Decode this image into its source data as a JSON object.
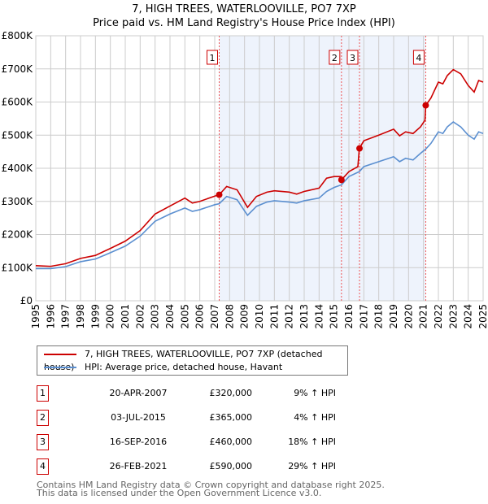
{
  "chart_data": {
    "type": "line",
    "title": "7, HIGH TREES, WATERLOOVILLE, PO7 7XP",
    "subtitle": "Price paid vs. HM Land Registry's House Price Index (HPI)",
    "xlim": [
      1995,
      2025
    ],
    "ylim": [
      0,
      800000
    ],
    "yticks": [
      {
        "v": 0,
        "label": "£0"
      },
      {
        "v": 100000,
        "label": "£100K"
      },
      {
        "v": 200000,
        "label": "£200K"
      },
      {
        "v": 300000,
        "label": "£300K"
      },
      {
        "v": 400000,
        "label": "£400K"
      },
      {
        "v": 500000,
        "label": "£500K"
      },
      {
        "v": 600000,
        "label": "£600K"
      },
      {
        "v": 700000,
        "label": "£700K"
      },
      {
        "v": 800000,
        "label": "£800K"
      }
    ],
    "xticks": [
      "1995",
      "1996",
      "1997",
      "1998",
      "1999",
      "2000",
      "2001",
      "2002",
      "2003",
      "2004",
      "2005",
      "2006",
      "2007",
      "2008",
      "2009",
      "2010",
      "2011",
      "2012",
      "2013",
      "2014",
      "2015",
      "2016",
      "2017",
      "2018",
      "2019",
      "2020",
      "2021",
      "2022",
      "2023",
      "2024",
      "2025"
    ],
    "grid": true,
    "colors": {
      "price": "#cc0000",
      "hpi": "#5b8fd0",
      "shade": "#eef3fc"
    },
    "shaded_range": [
      2007.3,
      2021.15
    ],
    "series": [
      {
        "name": "7, HIGH TREES, WATERLOOVILLE, PO7 7XP (detached house)",
        "x": [
          1995,
          1996,
          1997,
          1998,
          1999,
          2000,
          2001,
          2002,
          2003,
          2004,
          2005,
          2005.5,
          2006,
          2007,
          2007.3,
          2007.8,
          2008.5,
          2009.2,
          2009.8,
          2010.5,
          2011,
          2012,
          2012.5,
          2013,
          2014,
          2014.5,
          2015,
          2015.45,
          2015.5,
          2016,
          2016.6,
          2016.7,
          2017,
          2018,
          2019,
          2019.4,
          2019.8,
          2020.3,
          2020.8,
          2021.1,
          2021.15,
          2021.5,
          2022,
          2022.3,
          2022.6,
          2023,
          2023.5,
          2024,
          2024.4,
          2024.7,
          2025
        ],
        "values": [
          106,
          104,
          112,
          128,
          137,
          158,
          180,
          212,
          262,
          286,
          310,
          295,
          300,
          316,
          320,
          345,
          335,
          282,
          315,
          328,
          332,
          328,
          322,
          330,
          340,
          370,
          375,
          375,
          365,
          390,
          405,
          460,
          483,
          500,
          518,
          498,
          510,
          505,
          525,
          545,
          590,
          612,
          660,
          655,
          680,
          698,
          685,
          650,
          630,
          665,
          660
        ]
      },
      {
        "name": "HPI: Average price, detached house, Havant",
        "x": [
          1995,
          1996,
          1997,
          1998,
          1999,
          2000,
          2001,
          2002,
          2003,
          2004,
          2005,
          2005.5,
          2006,
          2007,
          2007.3,
          2007.8,
          2008.5,
          2009.2,
          2009.8,
          2010.5,
          2011,
          2012,
          2012.5,
          2013,
          2014,
          2014.5,
          2015,
          2015.5,
          2016,
          2016.7,
          2017,
          2018,
          2019,
          2019.4,
          2019.8,
          2020.3,
          2020.8,
          2021.15,
          2021.5,
          2022,
          2022.3,
          2022.6,
          2023,
          2023.5,
          2024,
          2024.4,
          2024.7,
          2025
        ],
        "values": [
          97,
          97,
          103,
          118,
          126,
          145,
          165,
          195,
          240,
          262,
          280,
          270,
          275,
          290,
          293,
          315,
          305,
          258,
          285,
          298,
          302,
          298,
          295,
          302,
          310,
          330,
          342,
          350,
          375,
          390,
          405,
          420,
          435,
          420,
          430,
          425,
          445,
          458,
          475,
          510,
          505,
          525,
          540,
          525,
          500,
          488,
          510,
          505
        ]
      }
    ],
    "unit": "thousands GBP",
    "sales": [
      {
        "id": "1",
        "x": 2007.3,
        "value": 320,
        "date": "20-APR-2007",
        "price": "£320,000",
        "hpi": "9% ↑ HPI"
      },
      {
        "id": "2",
        "x": 2015.5,
        "value": 365,
        "date": "03-JUL-2015",
        "price": "£365,000",
        "hpi": "4% ↑ HPI"
      },
      {
        "id": "3",
        "x": 2016.71,
        "value": 460,
        "date": "16-SEP-2016",
        "price": "£460,000",
        "hpi": "18% ↑ HPI"
      },
      {
        "id": "4",
        "x": 2021.15,
        "value": 590,
        "date": "26-FEB-2021",
        "price": "£590,000",
        "hpi": "29% ↑ HPI"
      }
    ]
  },
  "footer": {
    "line1": "Contains HM Land Registry data © Crown copyright and database right 2025.",
    "line2": "This data is licensed under the Open Government Licence v3.0."
  }
}
